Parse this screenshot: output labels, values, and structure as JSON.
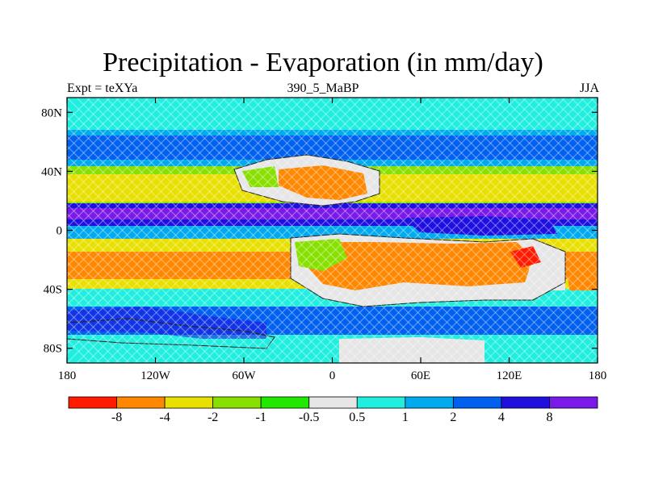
{
  "title": "Precipitation - Evaporation (in mm/day)",
  "left_subtitle": "Expt = teXYa",
  "center_subtitle": "390_5_MaBP",
  "right_subtitle": "JJA",
  "lon_ticks": [
    "180",
    "120W",
    "60W",
    "0",
    "60E",
    "120E",
    "180"
  ],
  "lat_ticks": [
    "80N",
    "40N",
    "0",
    "40S",
    "80S"
  ],
  "colorbar": {
    "colors": [
      "#ff1a00",
      "#ff8800",
      "#e8e000",
      "#88e000",
      "#22e800",
      "#e6e6e6",
      "#22eee0",
      "#00aaee",
      "#0060f0",
      "#2010e0",
      "#7a1ae8"
    ],
    "labels": [
      "-8",
      "-4",
      "-2",
      "-1",
      "-0.5",
      "0.5",
      "1",
      "2",
      "4",
      "8"
    ]
  },
  "chart_data": {
    "type": "heatmap",
    "title": "Precipitation - Evaporation (in mm/day)",
    "x_axis": [
      "180",
      "120W",
      "60W",
      "0",
      "60E",
      "120E",
      "180"
    ],
    "y_axis": [
      "80N",
      "40N",
      "0",
      "40S",
      "80S"
    ],
    "levels": [
      -8,
      -4,
      -2,
      -1,
      -0.5,
      0.5,
      1,
      2,
      4,
      8
    ],
    "units": "mm/day"
  }
}
